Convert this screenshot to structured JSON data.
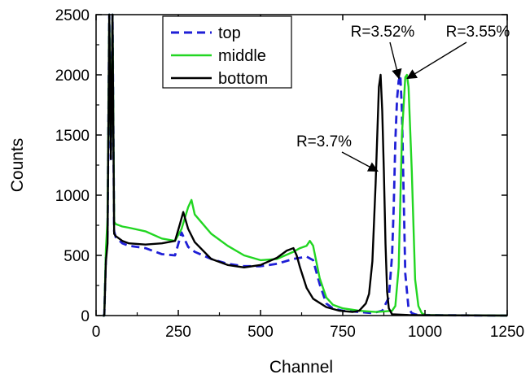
{
  "chart_data": {
    "type": "line",
    "xlabel": "Channel",
    "ylabel": "Counts",
    "xlim": [
      0,
      1250
    ],
    "ylim": [
      0,
      2500
    ],
    "xticks": [
      0,
      250,
      500,
      750,
      1000,
      1250
    ],
    "yticks": [
      0,
      500,
      1000,
      1500,
      2000,
      2500
    ],
    "grid": false,
    "legend_position": "top-center",
    "series": [
      {
        "name": "top",
        "color": "#1f1fd6",
        "dash": "dashed",
        "x": [
          20,
          25,
          30,
          35,
          40,
          45,
          50,
          55,
          60,
          80,
          100,
          150,
          200,
          240,
          260,
          280,
          300,
          350,
          400,
          450,
          500,
          550,
          600,
          620,
          640,
          660,
          680,
          700,
          720,
          750,
          800,
          840,
          870,
          890,
          900,
          905,
          910,
          915,
          920,
          925,
          930,
          940,
          950,
          960,
          970,
          980,
          1000,
          1050,
          1250
        ],
        "y": [
          0,
          0,
          500,
          680,
          2500,
          1300,
          2500,
          700,
          650,
          600,
          580,
          560,
          510,
          500,
          690,
          570,
          530,
          470,
          430,
          410,
          410,
          430,
          470,
          480,
          490,
          460,
          260,
          100,
          60,
          40,
          30,
          20,
          40,
          150,
          500,
          900,
          1450,
          1800,
          1950,
          2000,
          1700,
          350,
          60,
          20,
          10,
          5,
          5,
          3,
          0
        ]
      },
      {
        "name": "middle",
        "color": "#22d622",
        "dash": "solid",
        "x": [
          20,
          25,
          30,
          35,
          40,
          45,
          50,
          55,
          60,
          80,
          100,
          150,
          200,
          240,
          260,
          280,
          290,
          300,
          350,
          400,
          450,
          500,
          550,
          600,
          620,
          640,
          650,
          660,
          680,
          700,
          720,
          750,
          800,
          850,
          880,
          900,
          910,
          920,
          930,
          940,
          945,
          950,
          960,
          970,
          980,
          990,
          1000,
          1050,
          1250
        ],
        "y": [
          0,
          0,
          550,
          800,
          2500,
          1400,
          2500,
          780,
          760,
          740,
          730,
          700,
          640,
          620,
          720,
          900,
          960,
          840,
          680,
          580,
          500,
          460,
          470,
          530,
          560,
          580,
          620,
          580,
          310,
          150,
          90,
          60,
          40,
          30,
          35,
          40,
          80,
          400,
          1500,
          1980,
          2000,
          1900,
          1200,
          300,
          80,
          20,
          5,
          3,
          0
        ]
      },
      {
        "name": "bottom",
        "color": "#000000",
        "dash": "solid",
        "x": [
          20,
          25,
          30,
          35,
          40,
          45,
          50,
          55,
          60,
          80,
          100,
          150,
          200,
          240,
          255,
          265,
          280,
          300,
          350,
          400,
          450,
          500,
          550,
          580,
          600,
          610,
          620,
          640,
          660,
          700,
          740,
          780,
          800,
          820,
          830,
          840,
          850,
          860,
          865,
          870,
          875,
          880,
          885,
          890,
          900,
          950,
          1000,
          1250
        ],
        "y": [
          0,
          0,
          450,
          600,
          2500,
          1300,
          2500,
          680,
          660,
          620,
          600,
          590,
          600,
          620,
          760,
          860,
          720,
          610,
          470,
          420,
          400,
          420,
          480,
          540,
          560,
          500,
          400,
          230,
          140,
          70,
          40,
          30,
          40,
          100,
          180,
          450,
          1100,
          1900,
          2000,
          1700,
          1200,
          600,
          200,
          60,
          10,
          5,
          3,
          0
        ]
      }
    ],
    "annotations": [
      {
        "text": "R=3.7%",
        "target_series": "bottom",
        "x": 856,
        "y": 1200
      },
      {
        "text": "R=3.52%",
        "target_series": "top",
        "x": 921,
        "y": 1970
      },
      {
        "text": "R=3.55%",
        "target_series": "middle",
        "x": 946,
        "y": 1970
      }
    ]
  }
}
